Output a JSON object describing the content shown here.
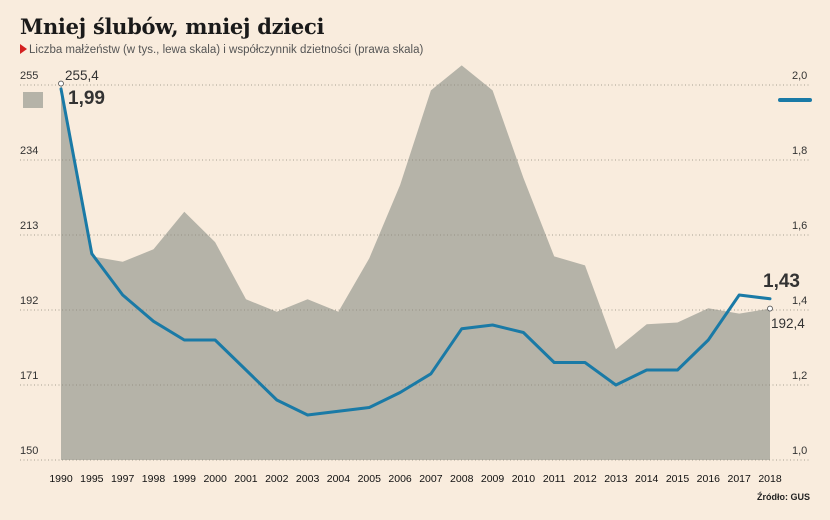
{
  "chart_data": {
    "type": "area+line",
    "title": "Mniej ślubów, mniej dzieci",
    "subtitle": "Liczba małżeństw (w tys., lewa skala) i współczynnik dzietności (prawa skala)",
    "source": "Źródło: GUS",
    "categories": [
      "1990",
      "1995",
      "1997",
      "1998",
      "1999",
      "2000",
      "2001",
      "2002",
      "2003",
      "2004",
      "2005",
      "2006",
      "2007",
      "2008",
      "2009",
      "2010",
      "2011",
      "2012",
      "2013",
      "2014",
      "2015",
      "2016",
      "2017",
      "2018"
    ],
    "series": [
      {
        "type": "area",
        "axis": "left",
        "color": "#b5b3a8",
        "values": [
          255.4,
          207,
          205.5,
          209,
          219.5,
          211,
          195,
          191.5,
          195,
          191.5,
          206.5,
          227,
          253.5,
          260.5,
          253.5,
          229,
          207,
          204.5,
          181,
          188,
          188.5,
          192.5,
          191,
          192.4
        ]
      },
      {
        "type": "line",
        "axis": "right",
        "color": "#1a7aa6",
        "values": [
          1.99,
          1.55,
          1.44,
          1.37,
          1.32,
          1.32,
          1.24,
          1.16,
          1.12,
          1.13,
          1.14,
          1.18,
          1.23,
          1.35,
          1.36,
          1.34,
          1.26,
          1.26,
          1.2,
          1.24,
          1.24,
          1.32,
          1.44,
          1.43
        ]
      }
    ],
    "left_axis": {
      "ticks": [
        "255",
        "234",
        "213",
        "192",
        "171",
        "150"
      ],
      "values": [
        255,
        234,
        213,
        192,
        171,
        150
      ],
      "min": 150,
      "max": 255
    },
    "right_axis": {
      "ticks": [
        "2,0",
        "1,8",
        "1,6",
        "1,4",
        "1,2",
        "1,0"
      ],
      "values": [
        2.0,
        1.8,
        1.6,
        1.4,
        1.2,
        1.0
      ],
      "min": 1.0,
      "max": 2.0
    },
    "annotations": {
      "area_first": "255,4",
      "line_first": "1,99",
      "line_last": "1,43",
      "area_last": "192,4"
    }
  }
}
